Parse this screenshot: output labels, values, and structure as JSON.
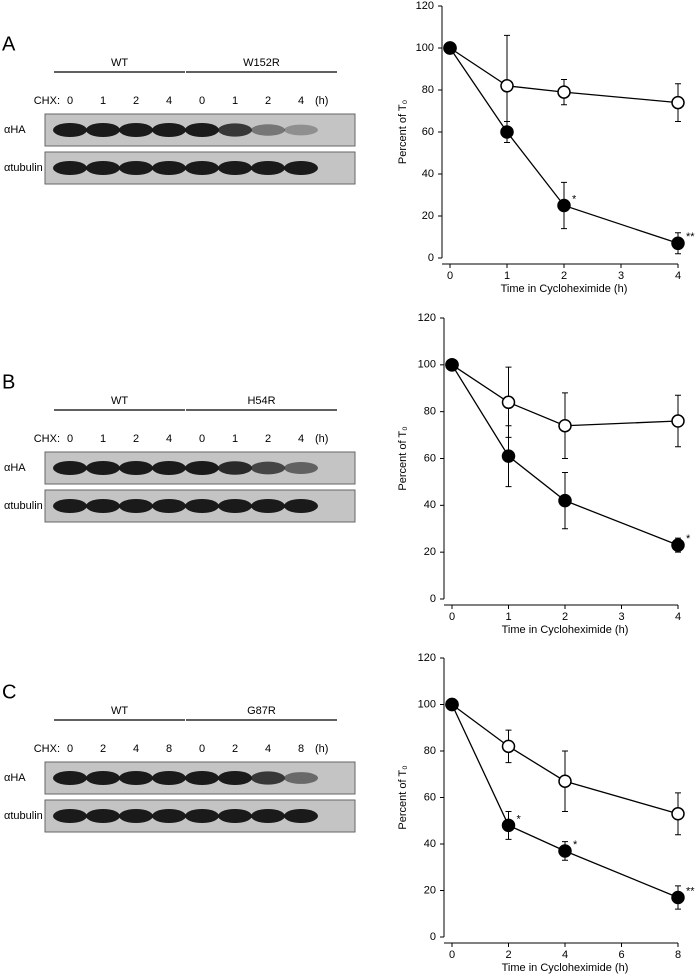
{
  "panels": [
    {
      "label": "A",
      "blot": {
        "groups": [
          "WT",
          "W152R"
        ],
        "treatment_label": "CHX:",
        "timepoints": [
          "0",
          "1",
          "2",
          "4",
          "0",
          "1",
          "2",
          "4"
        ],
        "unit": "(h)",
        "rows": [
          "αHA",
          "αtubulin"
        ]
      }
    },
    {
      "label": "B",
      "blot": {
        "groups": [
          "WT",
          "H54R"
        ],
        "treatment_label": "CHX:",
        "timepoints": [
          "0",
          "1",
          "2",
          "4",
          "0",
          "1",
          "2",
          "4"
        ],
        "unit": "(h)",
        "rows": [
          "αHA",
          "αtubulin"
        ]
      }
    },
    {
      "label": "C",
      "blot": {
        "groups": [
          "WT",
          "G87R"
        ],
        "treatment_label": "CHX:",
        "timepoints": [
          "0",
          "2",
          "4",
          "8",
          "0",
          "2",
          "4",
          "8"
        ],
        "unit": "(h)",
        "rows": [
          "αHA",
          "αtubulin"
        ]
      }
    }
  ],
  "chart_data": [
    {
      "type": "line",
      "x_label": "Time in Cycloheximide (h)",
      "y_label": "Percent of T₀",
      "x": [
        0,
        1,
        2,
        4
      ],
      "xlim": [
        0,
        4
      ],
      "xticks": [
        0,
        1,
        2,
        3,
        4
      ],
      "ylim": [
        0,
        120
      ],
      "yticks": [
        0,
        20,
        40,
        60,
        80,
        100,
        120
      ],
      "series": [
        {
          "marker": "open",
          "color": "#000000",
          "values": [
            100,
            82,
            79,
            74
          ],
          "errors": [
            0,
            24,
            6,
            9
          ]
        },
        {
          "marker": "filled",
          "color": "#000000",
          "values": [
            100,
            60,
            25,
            7
          ],
          "errors": [
            0,
            5,
            11,
            5
          ],
          "annotations": [
            null,
            null,
            "*",
            "**"
          ]
        }
      ]
    },
    {
      "type": "line",
      "x_label": "Time in Cycloheximide (h)",
      "y_label": "Percent of T₀",
      "x": [
        0,
        1,
        2,
        4
      ],
      "xlim": [
        0,
        4
      ],
      "xticks": [
        0,
        1,
        2,
        3,
        4
      ],
      "ylim": [
        0,
        120
      ],
      "yticks": [
        0,
        20,
        40,
        60,
        80,
        100,
        120
      ],
      "series": [
        {
          "marker": "open",
          "color": "#000000",
          "values": [
            100,
            84,
            74,
            76
          ],
          "errors": [
            0,
            15,
            14,
            11
          ]
        },
        {
          "marker": "filled",
          "color": "#000000",
          "values": [
            100,
            61,
            42,
            23
          ],
          "errors": [
            0,
            13,
            12,
            3
          ],
          "annotations": [
            null,
            null,
            null,
            "*"
          ]
        }
      ]
    },
    {
      "type": "line",
      "x_label": "Time in Cycloheximide (h)",
      "y_label": "Percent of T₀",
      "x": [
        0,
        2,
        4,
        8
      ],
      "xlim": [
        0,
        8
      ],
      "xticks": [
        0,
        2,
        4,
        6,
        8
      ],
      "ylim": [
        0,
        120
      ],
      "yticks": [
        0,
        20,
        40,
        60,
        80,
        100,
        120
      ],
      "series": [
        {
          "marker": "open",
          "color": "#000000",
          "values": [
            100,
            82,
            67,
            53
          ],
          "errors": [
            0,
            7,
            13,
            9
          ]
        },
        {
          "marker": "filled",
          "color": "#000000",
          "values": [
            100,
            48,
            37,
            17
          ],
          "errors": [
            0,
            6,
            4,
            5
          ],
          "annotations": [
            null,
            "*",
            "*",
            "**"
          ]
        }
      ]
    }
  ]
}
